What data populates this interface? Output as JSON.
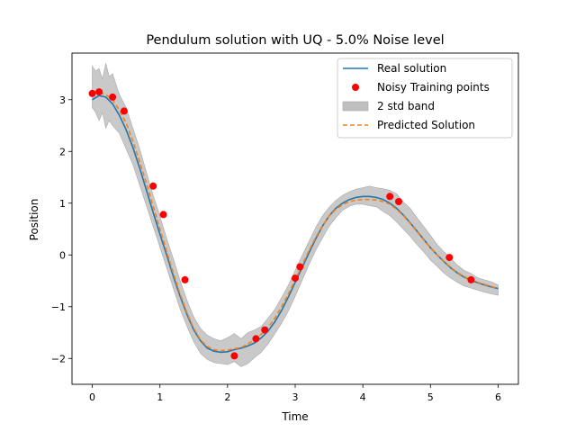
{
  "chart_data": {
    "type": "line",
    "title": "Pendulum solution with UQ - 5.0% Noise level",
    "xlabel": "Time",
    "ylabel": "Position",
    "xlim": [
      -0.3,
      6.3
    ],
    "ylim": [
      -2.5,
      3.9
    ],
    "xticks": [
      0,
      1,
      2,
      3,
      4,
      5,
      6
    ],
    "xtick_labels": [
      "0",
      "1",
      "2",
      "3",
      "4",
      "5",
      "6"
    ],
    "yticks": [
      -2,
      -1,
      0,
      1,
      2,
      3
    ],
    "ytick_labels": [
      "−2",
      "−1",
      "0",
      "1",
      "2",
      "3"
    ],
    "grid": false,
    "legend_position": "top-right",
    "colors": {
      "real": "#1f77b4",
      "predicted": "#ff7f0e",
      "points": "#ff0000",
      "band": "#bfbfbf"
    },
    "series": [
      {
        "name": "Real solution",
        "kind": "line",
        "x": [
          0,
          0.1,
          0.2,
          0.3,
          0.4,
          0.5,
          0.6,
          0.7,
          0.8,
          0.9,
          1.0,
          1.1,
          1.2,
          1.3,
          1.4,
          1.5,
          1.6,
          1.7,
          1.8,
          1.9,
          2.0,
          2.1,
          2.2,
          2.3,
          2.4,
          2.5,
          2.6,
          2.7,
          2.8,
          2.9,
          3.0,
          3.1,
          3.2,
          3.3,
          3.4,
          3.5,
          3.6,
          3.7,
          3.8,
          3.9,
          4.0,
          4.1,
          4.2,
          4.3,
          4.4,
          4.5,
          4.6,
          4.7,
          4.8,
          4.9,
          5.0,
          5.1,
          5.2,
          5.3,
          5.4,
          5.5,
          5.6,
          5.7,
          5.8,
          5.9,
          6.0
        ],
        "y": [
          3.0,
          3.08,
          3.05,
          2.92,
          2.7,
          2.42,
          2.08,
          1.68,
          1.25,
          0.82,
          0.4,
          0.0,
          -0.42,
          -0.8,
          -1.15,
          -1.45,
          -1.66,
          -1.8,
          -1.86,
          -1.88,
          -1.87,
          -1.83,
          -1.8,
          -1.76,
          -1.7,
          -1.6,
          -1.47,
          -1.29,
          -1.07,
          -0.81,
          -0.53,
          -0.25,
          0.03,
          0.3,
          0.55,
          0.75,
          0.9,
          1.0,
          1.07,
          1.11,
          1.13,
          1.13,
          1.11,
          1.07,
          1.0,
          0.9,
          0.77,
          0.62,
          0.46,
          0.3,
          0.14,
          0.0,
          -0.13,
          -0.25,
          -0.35,
          -0.43,
          -0.49,
          -0.54,
          -0.58,
          -0.62,
          -0.65
        ]
      },
      {
        "name": "Noisy Training points",
        "kind": "scatter",
        "x": [
          0.0,
          0.1,
          0.3,
          0.47,
          0.9,
          1.05,
          1.37,
          2.1,
          2.42,
          2.55,
          3.0,
          3.07,
          4.4,
          4.53,
          5.28,
          5.6
        ],
        "y": [
          3.12,
          3.15,
          3.05,
          2.78,
          1.33,
          0.78,
          -0.48,
          -1.95,
          -1.62,
          -1.45,
          -0.45,
          -0.23,
          1.13,
          1.03,
          -0.05,
          -0.48
        ]
      },
      {
        "name": "2 std band",
        "kind": "band",
        "x": [
          0,
          0.05,
          0.1,
          0.15,
          0.2,
          0.25,
          0.3,
          0.4,
          0.5,
          0.6,
          0.7,
          0.8,
          0.9,
          1.0,
          1.1,
          1.2,
          1.3,
          1.4,
          1.5,
          1.6,
          1.7,
          1.8,
          1.9,
          2.0,
          2.1,
          2.2,
          2.3,
          2.4,
          2.5,
          2.6,
          2.7,
          2.8,
          2.9,
          3.0,
          3.1,
          3.2,
          3.3,
          3.4,
          3.5,
          3.6,
          3.7,
          3.8,
          3.9,
          4.0,
          4.1,
          4.2,
          4.3,
          4.4,
          4.5,
          4.6,
          4.7,
          4.8,
          4.9,
          5.0,
          5.1,
          5.2,
          5.3,
          5.4,
          5.5,
          5.6,
          5.7,
          5.8,
          5.9,
          6.0
        ],
        "upper": [
          3.65,
          3.55,
          3.6,
          3.4,
          3.7,
          3.45,
          3.5,
          3.1,
          2.85,
          2.45,
          2.05,
          1.6,
          1.15,
          0.75,
          0.32,
          -0.08,
          -0.5,
          -0.88,
          -1.2,
          -1.42,
          -1.55,
          -1.62,
          -1.66,
          -1.6,
          -1.52,
          -1.62,
          -1.5,
          -1.45,
          -1.38,
          -1.22,
          -1.05,
          -0.82,
          -0.58,
          -0.3,
          -0.02,
          0.25,
          0.52,
          0.75,
          0.92,
          1.05,
          1.15,
          1.22,
          1.27,
          1.3,
          1.33,
          1.3,
          1.28,
          1.25,
          1.18,
          1.02,
          0.9,
          0.72,
          0.55,
          0.38,
          0.2,
          0.06,
          -0.06,
          -0.2,
          -0.3,
          -0.36,
          -0.44,
          -0.48,
          -0.52,
          -0.58
        ],
        "lower": [
          2.85,
          2.75,
          2.6,
          2.75,
          2.45,
          2.6,
          2.5,
          2.35,
          2.05,
          1.75,
          1.35,
          0.95,
          0.55,
          0.15,
          -0.25,
          -0.65,
          -1.05,
          -1.38,
          -1.68,
          -1.9,
          -2.02,
          -2.08,
          -2.1,
          -2.12,
          -2.06,
          -2.16,
          -2.1,
          -1.98,
          -1.88,
          -1.72,
          -1.52,
          -1.32,
          -1.08,
          -0.8,
          -0.5,
          -0.2,
          0.08,
          0.32,
          0.55,
          0.72,
          0.86,
          0.94,
          0.98,
          0.98,
          0.95,
          0.93,
          0.84,
          0.76,
          0.64,
          0.5,
          0.36,
          0.2,
          0.06,
          -0.1,
          -0.22,
          -0.35,
          -0.45,
          -0.53,
          -0.6,
          -0.64,
          -0.68,
          -0.72,
          -0.75,
          -0.78
        ]
      },
      {
        "name": "Predicted Solution",
        "kind": "line",
        "dashed": true,
        "x": [
          0,
          0.1,
          0.2,
          0.3,
          0.4,
          0.5,
          0.6,
          0.7,
          0.8,
          0.9,
          1.0,
          1.1,
          1.2,
          1.3,
          1.4,
          1.5,
          1.6,
          1.7,
          1.8,
          1.9,
          2.0,
          2.1,
          2.2,
          2.3,
          2.4,
          2.5,
          2.6,
          2.7,
          2.8,
          2.9,
          3.0,
          3.1,
          3.2,
          3.3,
          3.4,
          3.5,
          3.6,
          3.7,
          3.8,
          3.9,
          4.0,
          4.1,
          4.2,
          4.3,
          4.4,
          4.5,
          4.6,
          4.7,
          4.8,
          4.9,
          5.0,
          5.1,
          5.2,
          5.3,
          5.4,
          5.5,
          5.6,
          5.7,
          5.8,
          5.9,
          6.0
        ],
        "y": [
          3.15,
          3.14,
          3.1,
          3.0,
          2.8,
          2.55,
          2.2,
          1.8,
          1.38,
          0.94,
          0.5,
          0.07,
          -0.36,
          -0.76,
          -1.12,
          -1.42,
          -1.64,
          -1.77,
          -1.83,
          -1.85,
          -1.84,
          -1.81,
          -1.79,
          -1.72,
          -1.64,
          -1.53,
          -1.4,
          -1.22,
          -1.0,
          -0.75,
          -0.48,
          -0.2,
          0.07,
          0.33,
          0.56,
          0.75,
          0.88,
          0.97,
          1.03,
          1.06,
          1.07,
          1.07,
          1.06,
          1.03,
          0.98,
          0.88,
          0.76,
          0.61,
          0.45,
          0.29,
          0.14,
          0.0,
          -0.12,
          -0.24,
          -0.34,
          -0.42,
          -0.48,
          -0.53,
          -0.57,
          -0.61,
          -0.65
        ]
      }
    ]
  }
}
